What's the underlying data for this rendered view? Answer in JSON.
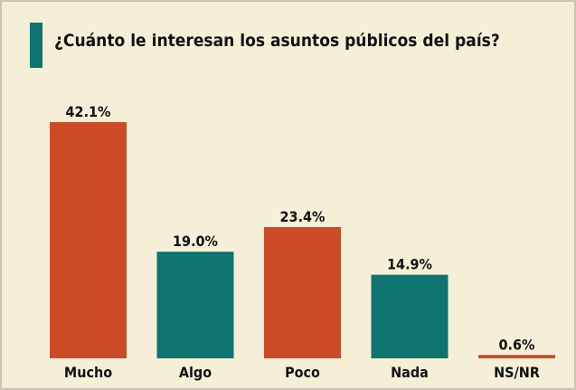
{
  "chart_data": {
    "type": "bar",
    "title": "¿Cuánto le interesan los asuntos públicos del país?",
    "categories": [
      "Mucho",
      "Algo",
      "Poco",
      "Nada",
      "NS/NR"
    ],
    "values": [
      42.1,
      19.0,
      23.4,
      14.9,
      0.6
    ],
    "value_labels": [
      "42.1%",
      "19.0%",
      "23.4%",
      "14.9%",
      "0.6%"
    ],
    "colors": [
      "#cc4b26",
      "#0d7470",
      "#cc4b26",
      "#0d7470",
      "#cc4b26"
    ]
  }
}
